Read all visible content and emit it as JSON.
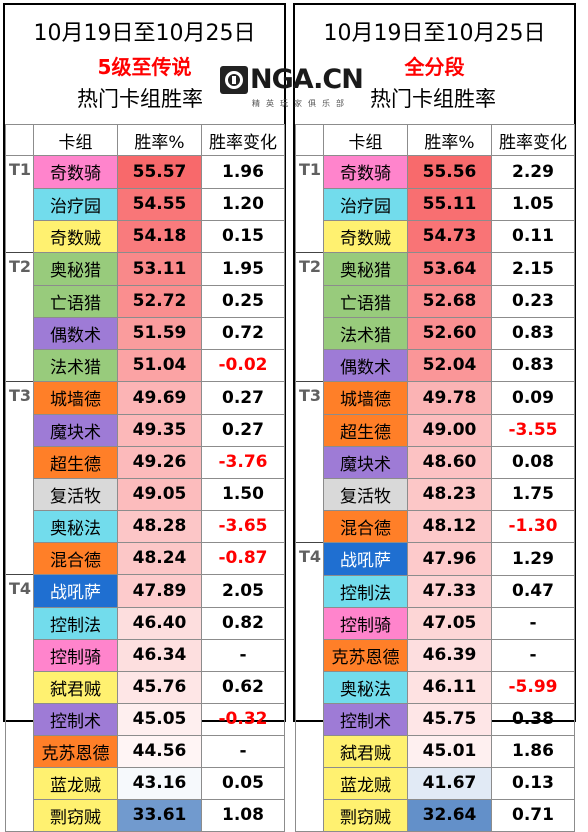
{
  "logo": {
    "text": "NGA.CN",
    "sub": "精英玩家俱乐部",
    "badge": "nga-logo-icon"
  },
  "headers": {
    "deck": "卡组",
    "winrate": "胜率%",
    "change": "胜率变化"
  },
  "colors": {
    "class": {
      "rogue": "#fff170",
      "paladin": "#ff84cc",
      "druid": "#ff7f28",
      "hunter": "#98cb7c",
      "warlock": "#9e7bd6",
      "mage": "#72dcec",
      "priest": "#d9d9d9",
      "shaman": "#1f6fd1",
      "demonhunter": "#2ea043"
    },
    "rate_high": "#f8696b",
    "rate_mid": "#ffffff",
    "rate_low": "#5a8ac6",
    "negative": "#ff0000"
  },
  "panels": [
    {
      "id": "left",
      "date": "10月19日至10月25日",
      "subtitle": "5级至传说",
      "caption": "热门卡组胜率",
      "rows": [
        {
          "tier": "T1",
          "name": "奇数骑",
          "cls": "paladin",
          "rate": "55.57",
          "delta": "1.96",
          "neg": false
        },
        {
          "tier": "",
          "name": "治疗园",
          "cls": "mage",
          "rate": "54.55",
          "delta": "1.20",
          "neg": false
        },
        {
          "tier": "",
          "name": "奇数贼",
          "cls": "rogue",
          "rate": "54.18",
          "delta": "0.15",
          "neg": false
        },
        {
          "tier": "T2",
          "name": "奥秘猎",
          "cls": "hunter",
          "rate": "53.11",
          "delta": "1.95",
          "neg": false
        },
        {
          "tier": "",
          "name": "亡语猎",
          "cls": "hunter",
          "rate": "52.72",
          "delta": "0.25",
          "neg": false
        },
        {
          "tier": "",
          "name": "偶数术",
          "cls": "warlock",
          "rate": "51.59",
          "delta": "0.72",
          "neg": false
        },
        {
          "tier": "",
          "name": "法术猎",
          "cls": "hunter",
          "rate": "51.04",
          "delta": "-0.02",
          "neg": true
        },
        {
          "tier": "T3",
          "name": "城墙德",
          "cls": "druid",
          "rate": "49.69",
          "delta": "0.27",
          "neg": false
        },
        {
          "tier": "",
          "name": "魔块术",
          "cls": "warlock",
          "rate": "49.35",
          "delta": "0.27",
          "neg": false
        },
        {
          "tier": "",
          "name": "超生德",
          "cls": "druid",
          "rate": "49.26",
          "delta": "-3.76",
          "neg": true
        },
        {
          "tier": "",
          "name": "复活牧",
          "cls": "priest",
          "rate": "49.05",
          "delta": "1.50",
          "neg": false
        },
        {
          "tier": "",
          "name": "奥秘法",
          "cls": "mage",
          "rate": "48.28",
          "delta": "-3.65",
          "neg": true
        },
        {
          "tier": "",
          "name": "混合德",
          "cls": "druid",
          "rate": "48.24",
          "delta": "-0.87",
          "neg": true
        },
        {
          "tier": "T4",
          "name": "战吼萨",
          "cls": "shaman",
          "rate": "47.89",
          "delta": "2.05",
          "neg": false
        },
        {
          "tier": "",
          "name": "控制法",
          "cls": "mage",
          "rate": "46.40",
          "delta": "0.82",
          "neg": false
        },
        {
          "tier": "",
          "name": "控制骑",
          "cls": "paladin",
          "rate": "46.34",
          "delta": "-",
          "neg": false
        },
        {
          "tier": "",
          "name": "弑君贼",
          "cls": "rogue",
          "rate": "45.76",
          "delta": "0.62",
          "neg": false
        },
        {
          "tier": "",
          "name": "控制术",
          "cls": "warlock",
          "rate": "45.05",
          "delta": "-0.32",
          "neg": true
        },
        {
          "tier": "",
          "name": "克苏恩德",
          "cls": "druid",
          "rate": "44.56",
          "delta": "-",
          "neg": false
        },
        {
          "tier": "",
          "name": "蓝龙贼",
          "cls": "rogue",
          "rate": "43.16",
          "delta": "0.05",
          "neg": false
        },
        {
          "tier": "",
          "name": "剽窃贼",
          "cls": "rogue",
          "rate": "33.61",
          "delta": "1.08",
          "neg": false
        }
      ]
    },
    {
      "id": "right",
      "date": "10月19日至10月25日",
      "subtitle": "全分段",
      "caption": "热门卡组胜率",
      "rows": [
        {
          "tier": "T1",
          "name": "奇数骑",
          "cls": "paladin",
          "rate": "55.56",
          "delta": "2.29",
          "neg": false
        },
        {
          "tier": "",
          "name": "治疗园",
          "cls": "mage",
          "rate": "55.11",
          "delta": "1.05",
          "neg": false
        },
        {
          "tier": "",
          "name": "奇数贼",
          "cls": "rogue",
          "rate": "54.73",
          "delta": "0.11",
          "neg": false
        },
        {
          "tier": "T2",
          "name": "奥秘猎",
          "cls": "hunter",
          "rate": "53.64",
          "delta": "2.15",
          "neg": false
        },
        {
          "tier": "",
          "name": "亡语猎",
          "cls": "hunter",
          "rate": "52.68",
          "delta": "0.23",
          "neg": false
        },
        {
          "tier": "",
          "name": "法术猎",
          "cls": "hunter",
          "rate": "52.60",
          "delta": "0.83",
          "neg": false
        },
        {
          "tier": "",
          "name": "偶数术",
          "cls": "warlock",
          "rate": "52.04",
          "delta": "0.83",
          "neg": false
        },
        {
          "tier": "T3",
          "name": "城墙德",
          "cls": "druid",
          "rate": "49.78",
          "delta": "0.09",
          "neg": false
        },
        {
          "tier": "",
          "name": "超生德",
          "cls": "druid",
          "rate": "49.00",
          "delta": "-3.55",
          "neg": true
        },
        {
          "tier": "",
          "name": "魔块术",
          "cls": "warlock",
          "rate": "48.60",
          "delta": "0.08",
          "neg": false
        },
        {
          "tier": "",
          "name": "复活牧",
          "cls": "priest",
          "rate": "48.23",
          "delta": "1.75",
          "neg": false
        },
        {
          "tier": "",
          "name": "混合德",
          "cls": "druid",
          "rate": "48.12",
          "delta": "-1.30",
          "neg": true
        },
        {
          "tier": "T4",
          "name": "战吼萨",
          "cls": "shaman",
          "rate": "47.96",
          "delta": "1.29",
          "neg": false
        },
        {
          "tier": "",
          "name": "控制法",
          "cls": "mage",
          "rate": "47.33",
          "delta": "0.47",
          "neg": false
        },
        {
          "tier": "",
          "name": "控制骑",
          "cls": "paladin",
          "rate": "47.05",
          "delta": "-",
          "neg": false
        },
        {
          "tier": "",
          "name": "克苏恩德",
          "cls": "druid",
          "rate": "46.39",
          "delta": "-",
          "neg": false
        },
        {
          "tier": "",
          "name": "奥秘法",
          "cls": "mage",
          "rate": "46.11",
          "delta": "-5.99",
          "neg": true
        },
        {
          "tier": "",
          "name": "控制术",
          "cls": "warlock",
          "rate": "45.75",
          "delta": "0.38",
          "neg": false
        },
        {
          "tier": "",
          "name": "弑君贼",
          "cls": "rogue",
          "rate": "45.01",
          "delta": "1.86",
          "neg": false
        },
        {
          "tier": "",
          "name": "蓝龙贼",
          "cls": "rogue",
          "rate": "41.67",
          "delta": "0.13",
          "neg": false
        },
        {
          "tier": "",
          "name": "剽窃贼",
          "cls": "rogue",
          "rate": "32.64",
          "delta": "0.71",
          "neg": false
        }
      ]
    }
  ]
}
